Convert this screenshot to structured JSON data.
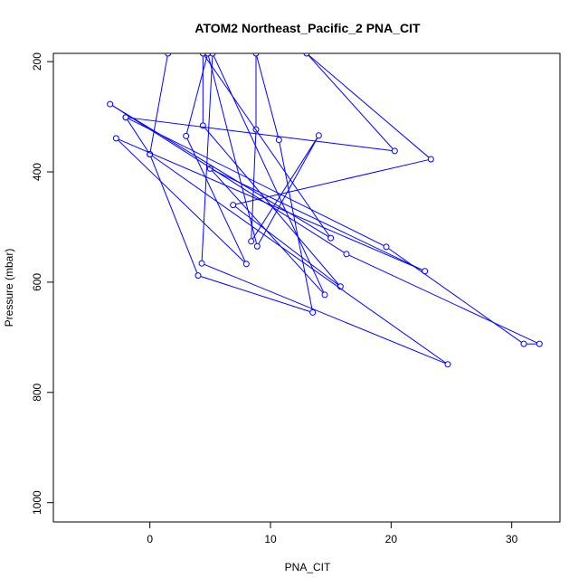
{
  "chart_data": {
    "type": "line",
    "title": "ATOM2 Northeast_Pacific_2 PNA_CIT",
    "xlabel": "PNA_CIT",
    "ylabel": "Pressure (mbar)",
    "xlim": [
      -8,
      34
    ],
    "ylim": [
      1035,
      185
    ],
    "y_reversed": true,
    "x_ticks": [
      0,
      10,
      20,
      30
    ],
    "y_ticks": [
      200,
      400,
      600,
      800,
      1000
    ],
    "grid": false,
    "series_color": "#0000ff",
    "marker": "open-circle",
    "points": [
      {
        "x": 1.5,
        "y": 185
      },
      {
        "x": 0.0,
        "y": 368
      },
      {
        "x": 4.0,
        "y": 588
      },
      {
        "x": 13.5,
        "y": 655
      },
      {
        "x": 10.7,
        "y": 342
      },
      {
        "x": 8.8,
        "y": 185
      },
      {
        "x": 8.8,
        "y": 323
      },
      {
        "x": 8.4,
        "y": 526
      },
      {
        "x": 14.0,
        "y": 334
      },
      {
        "x": 8.9,
        "y": 535
      },
      {
        "x": 4.8,
        "y": 185
      },
      {
        "x": 3.0,
        "y": 335
      },
      {
        "x": 8.0,
        "y": 567
      },
      {
        "x": -2.8,
        "y": 339
      },
      {
        "x": 22.8,
        "y": 580
      },
      {
        "x": 5.0,
        "y": 394
      },
      {
        "x": 14.5,
        "y": 623
      },
      {
        "x": 5.2,
        "y": 185
      },
      {
        "x": 4.3,
        "y": 566
      },
      {
        "x": 24.7,
        "y": 749
      },
      {
        "x": 0.0,
        "y": 368
      },
      {
        "x": -2.0,
        "y": 301
      },
      {
        "x": 20.3,
        "y": 362
      },
      {
        "x": 13.0,
        "y": 185
      },
      {
        "x": 23.3,
        "y": 377
      },
      {
        "x": 6.9,
        "y": 460
      },
      {
        "x": 15.8,
        "y": 608
      },
      {
        "x": 4.4,
        "y": 316
      },
      {
        "x": 4.4,
        "y": 185
      },
      {
        "x": 15.0,
        "y": 520
      },
      {
        "x": -3.3,
        "y": 277
      },
      {
        "x": 16.3,
        "y": 549
      },
      {
        "x": 32.3,
        "y": 712
      },
      {
        "x": 31.0,
        "y": 712
      },
      {
        "x": 19.6,
        "y": 536
      },
      {
        "x": -2.0,
        "y": 301
      }
    ]
  }
}
